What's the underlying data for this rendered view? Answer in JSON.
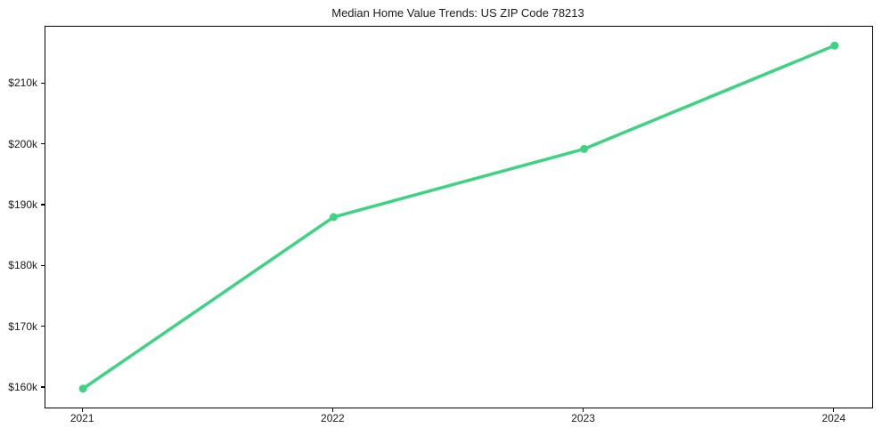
{
  "figure": {
    "background": "#ffffff",
    "text_color": "#1a1a1a",
    "spine_color": "#000000"
  },
  "chart_data": {
    "type": "line",
    "title": "Median Home Value Trends: US ZIP Code 78213",
    "xlabel": "",
    "ylabel": "",
    "x": [
      2021,
      2022,
      2023,
      2024
    ],
    "x_tick_labels": [
      "2021",
      "2022",
      "2023",
      "2024"
    ],
    "series": [
      {
        "name": "median-home-value",
        "values_usd_k": [
          159.9,
          188.1,
          199.3,
          216.3
        ],
        "color": "#3ed383",
        "line_width": 3.5,
        "marker": "circle",
        "marker_radius": 4.5
      }
    ],
    "y_ticks_usd_k": [
      160,
      170,
      180,
      190,
      200,
      210
    ],
    "y_tick_labels": [
      "$160k",
      "$170k",
      "$180k",
      "$190k",
      "$200k",
      "$210k"
    ],
    "xlim": [
      2020.85,
      2024.15
    ],
    "ylim": [
      156.8,
      219.4
    ],
    "grid": false,
    "legend": "none"
  }
}
